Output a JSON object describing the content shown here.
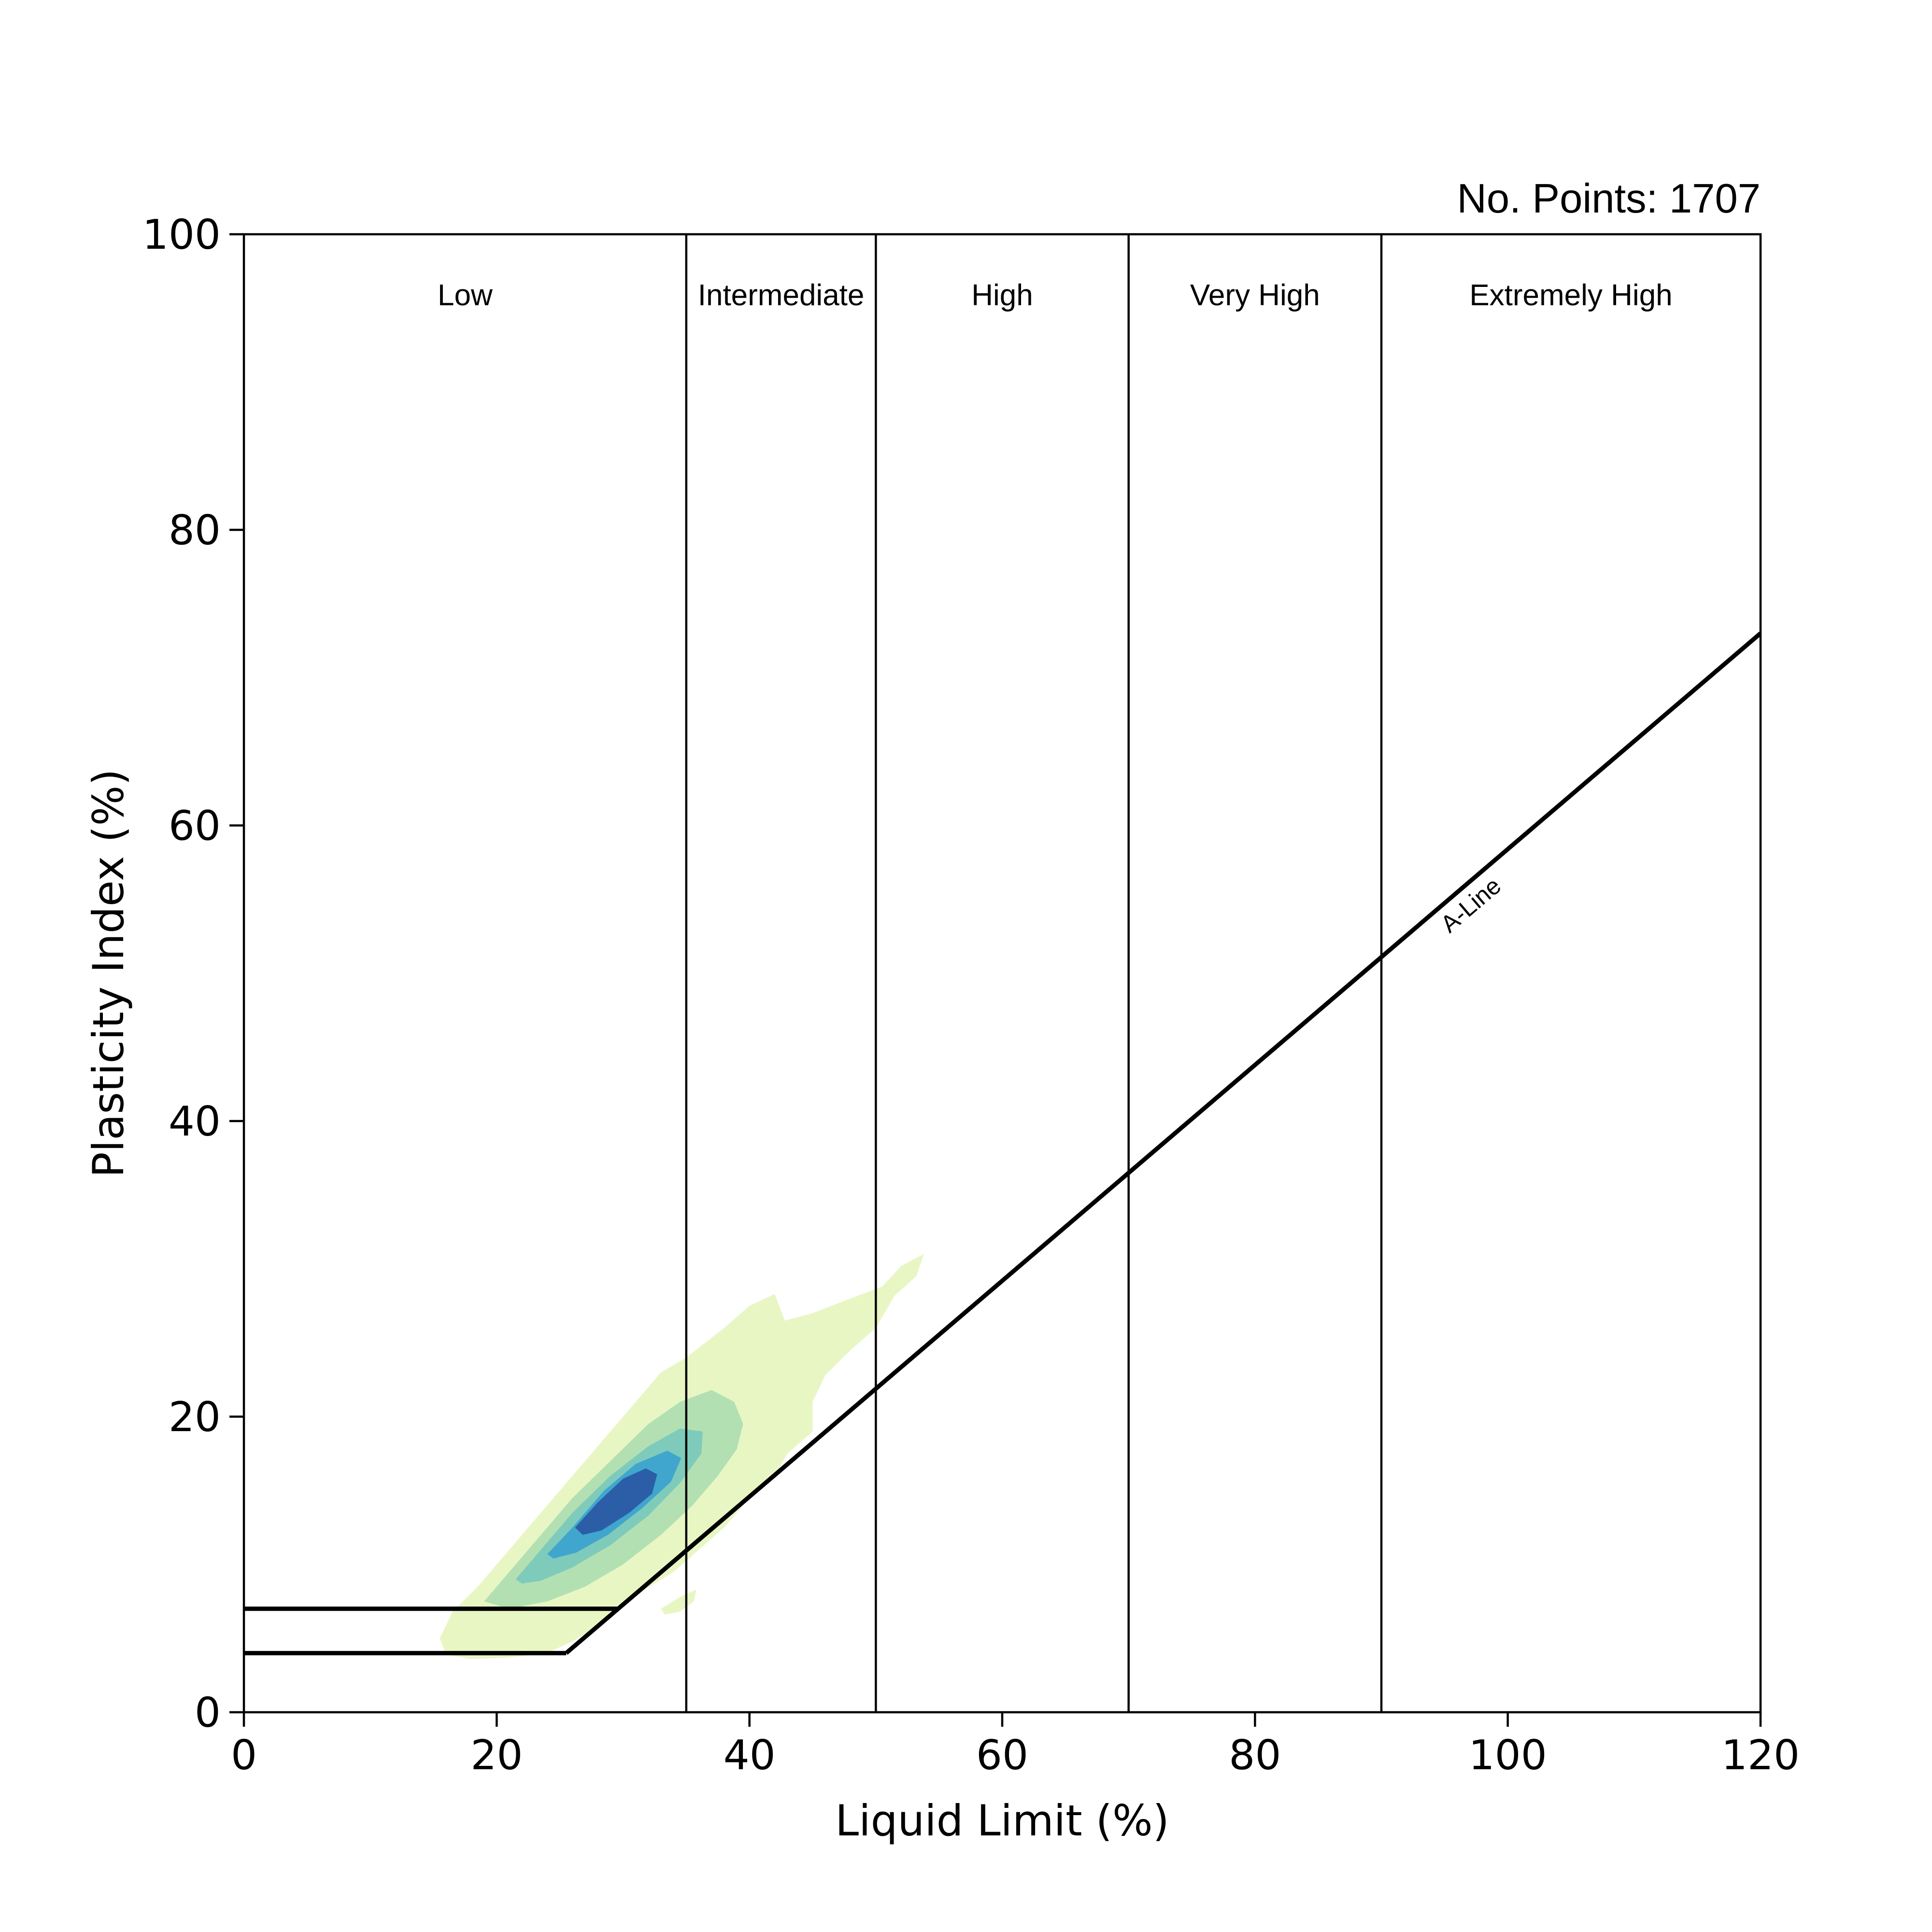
{
  "chart_data": {
    "type": "contour",
    "title": "",
    "annotation": "No. Points: 1707",
    "xlabel": "Liquid Limit (%)",
    "ylabel": "Plasticity Index (%)",
    "xlim": [
      0,
      120
    ],
    "ylim": [
      0,
      100
    ],
    "xticks": [
      0,
      20,
      40,
      60,
      80,
      100,
      120
    ],
    "yticks": [
      0,
      20,
      40,
      60,
      80,
      100
    ],
    "grid": false,
    "zone_boundaries": [
      35,
      50,
      70,
      90
    ],
    "zones": [
      {
        "label": "Low",
        "x": 17.5
      },
      {
        "label": "Intermediate",
        "x": 42.5
      },
      {
        "label": "High",
        "x": 60
      },
      {
        "label": "Very High",
        "x": 80
      },
      {
        "label": "Extremely High",
        "x": 105
      }
    ],
    "a_line": {
      "label": "A-Line",
      "points": [
        [
          25.5,
          4
        ],
        [
          120,
          73
        ]
      ]
    },
    "low_plasticity_lines": [
      {
        "points": [
          [
            0,
            4
          ],
          [
            25.5,
            4
          ]
        ]
      },
      {
        "points": [
          [
            0,
            7
          ],
          [
            29.6,
            7
          ]
        ]
      }
    ],
    "density_levels": [
      {
        "color": "#e8f6c4",
        "polygons": [
          [
            [
              15.5,
              5
            ],
            [
              16.5,
              6.8
            ],
            [
              18.5,
              8.5
            ],
            [
              21,
              11
            ],
            [
              24,
              14
            ],
            [
              27,
              17
            ],
            [
              30,
              20
            ],
            [
              33,
              23
            ],
            [
              35,
              24
            ],
            [
              38,
              26
            ],
            [
              40,
              27.5
            ],
            [
              42,
              28.3
            ],
            [
              42.8,
              26.5
            ],
            [
              45,
              27
            ],
            [
              48,
              28
            ],
            [
              50.5,
              28.8
            ],
            [
              52,
              30.2
            ],
            [
              53.8,
              31
            ],
            [
              53.2,
              29.5
            ],
            [
              51.5,
              28.2
            ],
            [
              50,
              26
            ],
            [
              48,
              24.5
            ],
            [
              46,
              22.8
            ],
            [
              45,
              21
            ],
            [
              45,
              19
            ],
            [
              43,
              17.5
            ],
            [
              42,
              16
            ],
            [
              40,
              14.5
            ],
            [
              38,
              12.5
            ],
            [
              36,
              11
            ],
            [
              34,
              9.5
            ],
            [
              31.5,
              8.2
            ],
            [
              29.5,
              7
            ],
            [
              28,
              5.8
            ],
            [
              26,
              4.8
            ],
            [
              24,
              4
            ],
            [
              21,
              3.7
            ],
            [
              18,
              3.6
            ],
            [
              16,
              3.9
            ]
          ],
          [
            [
              33,
              7
            ],
            [
              34.5,
              7.8
            ],
            [
              35.8,
              8.3
            ],
            [
              35.6,
              7.5
            ],
            [
              34.5,
              6.8
            ],
            [
              33.3,
              6.6
            ]
          ]
        ]
      },
      {
        "color": "#b3e0b2",
        "polygons": [
          [
            [
              19,
              7.5
            ],
            [
              20.5,
              9
            ],
            [
              23,
              11.5
            ],
            [
              26,
              14.5
            ],
            [
              29,
              17
            ],
            [
              32,
              19.5
            ],
            [
              34.5,
              21
            ],
            [
              37,
              21.8
            ],
            [
              38.8,
              21
            ],
            [
              39.5,
              19.5
            ],
            [
              39,
              17.8
            ],
            [
              37.5,
              16
            ],
            [
              35.5,
              14
            ],
            [
              33,
              12
            ],
            [
              30,
              10
            ],
            [
              27,
              8.5
            ],
            [
              24,
              7.5
            ],
            [
              21,
              7
            ]
          ]
        ]
      },
      {
        "color": "#7fcbbb",
        "polygons": [
          [
            [
              21.5,
              9
            ],
            [
              23.5,
              11
            ],
            [
              26,
              13.5
            ],
            [
              29,
              16
            ],
            [
              32,
              18
            ],
            [
              34.5,
              19.2
            ],
            [
              36.3,
              19
            ],
            [
              36.2,
              17.5
            ],
            [
              34.5,
              15.5
            ],
            [
              32,
              13.3
            ],
            [
              29,
              11.3
            ],
            [
              26,
              9.8
            ],
            [
              23.5,
              8.9
            ],
            [
              22,
              8.7
            ]
          ]
        ]
      },
      {
        "color": "#40a6cd",
        "polygons": [
          [
            [
              24,
              10.7
            ],
            [
              26,
              12.5
            ],
            [
              28.5,
              15
            ],
            [
              31,
              16.8
            ],
            [
              33.5,
              17.7
            ],
            [
              34.6,
              17.2
            ],
            [
              33.8,
              15.6
            ],
            [
              31.5,
              13.8
            ],
            [
              28.8,
              12
            ],
            [
              26.3,
              10.8
            ],
            [
              24.5,
              10.4
            ]
          ]
        ]
      },
      {
        "color": "#2c5ea8",
        "polygons": [
          [
            [
              26.2,
              12.5
            ],
            [
              28,
              14.2
            ],
            [
              30,
              15.8
            ],
            [
              31.8,
              16.5
            ],
            [
              32.7,
              16.1
            ],
            [
              32.3,
              14.8
            ],
            [
              30.5,
              13.5
            ],
            [
              28.3,
              12.3
            ],
            [
              26.8,
              12
            ]
          ]
        ]
      }
    ]
  }
}
